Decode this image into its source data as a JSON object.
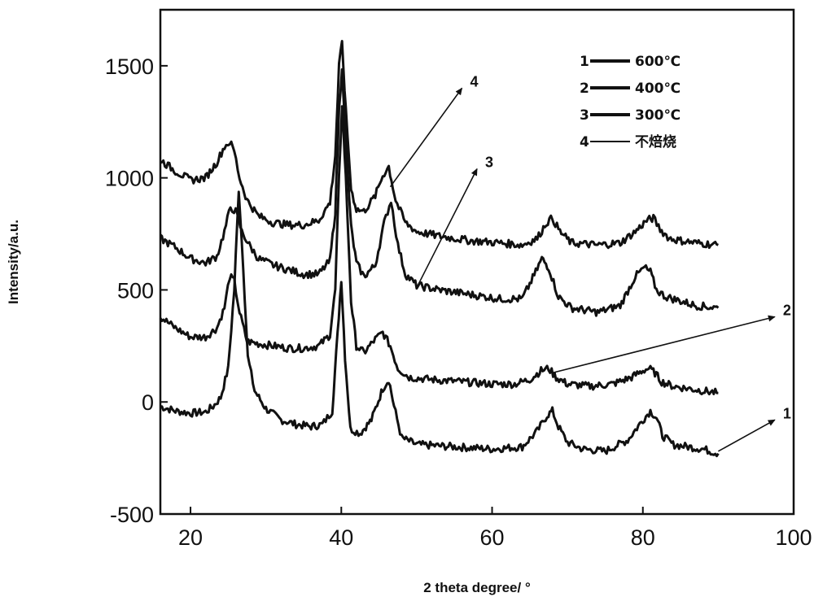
{
  "chart_data": {
    "type": "line",
    "xlabel": "2 theta degree/ °",
    "ylabel": "Intensity/a.u.",
    "xlim": [
      16,
      100
    ],
    "ylim": [
      -500,
      1750
    ],
    "xticks": [
      20,
      40,
      60,
      80,
      100
    ],
    "yticks": [
      -500,
      0,
      500,
      1000,
      1500
    ],
    "grid": false,
    "legend_position": "top-right",
    "series": [
      {
        "name": "600℃",
        "label": "1",
        "x": [
          16,
          18,
          20,
          22,
          23,
          24,
          25,
          25.8,
          26.4,
          27,
          27.6,
          28.5,
          30,
          32,
          34,
          36,
          37.5,
          38.8,
          39.5,
          40,
          40.5,
          41.2,
          42.5,
          44,
          45.5,
          46.3,
          47,
          48,
          50,
          55,
          60,
          64,
          66,
          67.3,
          68,
          68.8,
          70,
          72,
          75,
          78,
          80,
          81,
          81.8,
          82.6,
          84,
          86,
          88,
          90
        ],
        "y": [
          -20,
          -40,
          -50,
          -45,
          -20,
          20,
          150,
          500,
          950,
          600,
          200,
          50,
          -30,
          -80,
          -100,
          -110,
          -100,
          -40,
          300,
          550,
          200,
          -120,
          -140,
          -80,
          60,
          100,
          -20,
          -160,
          -190,
          -200,
          -210,
          -200,
          -130,
          -60,
          -40,
          -110,
          -180,
          -210,
          -220,
          -170,
          -80,
          -40,
          -70,
          -150,
          -190,
          -200,
          -210,
          -230
        ]
      },
      {
        "name": "400℃",
        "label": "2",
        "x": [
          16,
          18,
          20,
          22,
          23.5,
          24.5,
          25.2,
          25.8,
          26.5,
          27.5,
          29,
          31,
          33,
          35,
          37,
          38.5,
          39.2,
          39.7,
          40.1,
          40.6,
          41.3,
          42,
          43,
          44.5,
          45.5,
          46.5,
          47.5,
          49,
          52,
          56,
          60,
          63,
          65,
          66.5,
          67.5,
          68.5,
          70,
          73,
          76,
          78.5,
          80,
          80.8,
          81.6,
          82.5,
          84,
          86,
          88,
          90
        ],
        "y": [
          380,
          330,
          290,
          290,
          330,
          420,
          560,
          540,
          400,
          270,
          260,
          250,
          240,
          240,
          250,
          300,
          500,
          1000,
          1330,
          1000,
          450,
          250,
          220,
          280,
          310,
          250,
          150,
          110,
          100,
          90,
          80,
          80,
          100,
          140,
          150,
          110,
          80,
          70,
          80,
          110,
          140,
          150,
          130,
          90,
          70,
          60,
          50,
          40
        ]
      },
      {
        "name": "300℃",
        "label": "3",
        "x": [
          16,
          18,
          20,
          22,
          23.5,
          24.5,
          25.3,
          26,
          26.8,
          27.8,
          29,
          31,
          33,
          35,
          37,
          38.5,
          39.2,
          39.7,
          40.1,
          40.6,
          41.3,
          42,
          43,
          44.5,
          45.7,
          46.6,
          47.5,
          48.5,
          50,
          53,
          57,
          61,
          64,
          65.8,
          66.6,
          67.5,
          68.8,
          70.5,
          74,
          77,
          79,
          80.2,
          81,
          81.8,
          83,
          85,
          87,
          90
        ],
        "y": [
          730,
          690,
          640,
          620,
          650,
          760,
          870,
          850,
          760,
          700,
          640,
          610,
          590,
          570,
          570,
          630,
          850,
          1300,
          1500,
          1150,
          780,
          620,
          560,
          610,
          800,
          900,
          700,
          570,
          520,
          500,
          480,
          460,
          460,
          580,
          640,
          600,
          470,
          420,
          400,
          430,
          560,
          600,
          580,
          500,
          470,
          450,
          430,
          420
        ]
      },
      {
        "name": "不焙烧",
        "label": "4",
        "x": [
          16,
          18,
          20,
          22,
          23.5,
          24.5,
          25.2,
          25.8,
          26.5,
          27.5,
          29,
          31,
          33,
          35,
          37,
          38.5,
          39.2,
          39.7,
          40.1,
          40.6,
          41.3,
          42,
          43,
          44.5,
          45.5,
          46.3,
          47.2,
          48.5,
          50,
          53,
          57,
          61,
          64,
          66,
          67.2,
          68,
          69,
          70.5,
          74,
          77,
          79,
          80.5,
          81.4,
          82.3,
          83.5,
          85,
          87,
          90
        ],
        "y": [
          1080,
          1030,
          990,
          1000,
          1070,
          1140,
          1160,
          1120,
          1000,
          900,
          830,
          800,
          790,
          790,
          810,
          890,
          1100,
          1500,
          1600,
          1300,
          950,
          860,
          850,
          920,
          1010,
          1050,
          900,
          800,
          760,
          740,
          720,
          710,
          700,
          730,
          800,
          820,
          760,
          710,
          700,
          710,
          760,
          810,
          820,
          770,
          730,
          720,
          710,
          700
        ]
      }
    ],
    "annotations": [
      {
        "label": "1",
        "x": 90,
        "y": -220,
        "tx": 97.5,
        "ty": -80
      },
      {
        "label": "2",
        "x": 68,
        "y": 130,
        "tx": 97.5,
        "ty": 380
      },
      {
        "label": "3",
        "x": 50,
        "y": 510,
        "tx": 58,
        "ty": 1040
      },
      {
        "label": "4",
        "x": 46.5,
        "y": 960,
        "tx": 56,
        "ty": 1400
      }
    ]
  }
}
